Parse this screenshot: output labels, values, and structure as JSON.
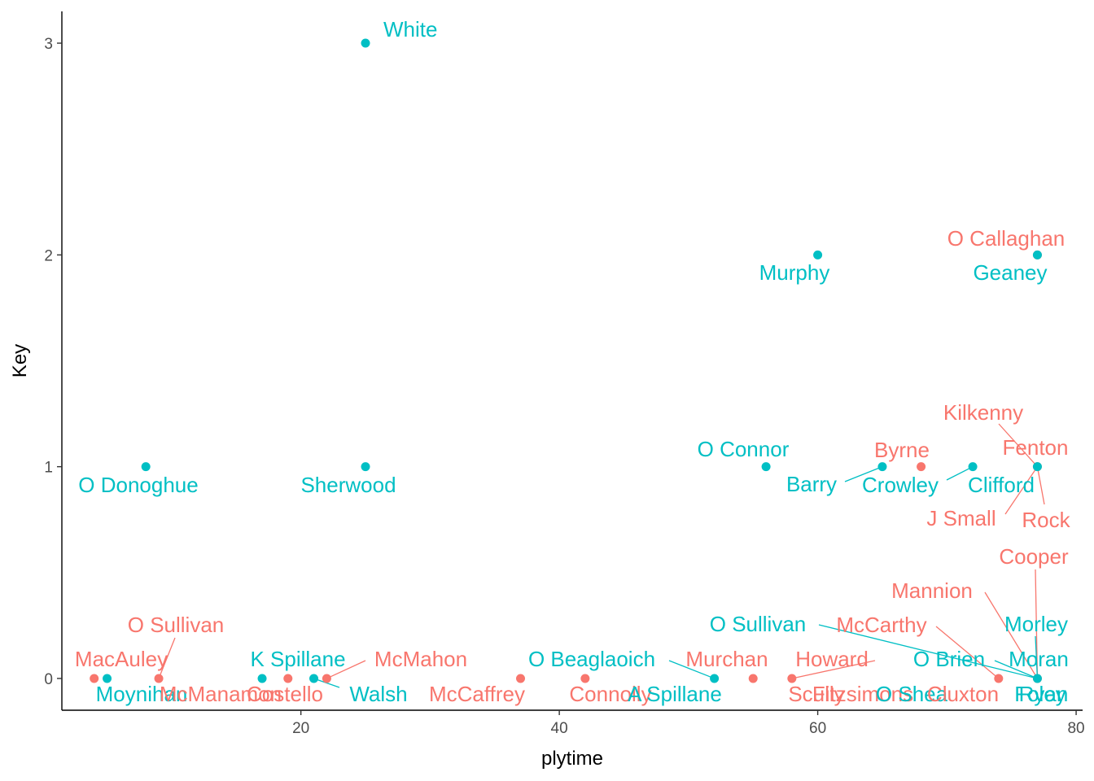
{
  "chart_data": {
    "type": "scatter",
    "title": "",
    "xlabel": "plytime",
    "ylabel": "Key",
    "xlim": [
      1.5,
      80.5
    ],
    "ylim": [
      -0.15,
      3.15
    ],
    "x_ticks": [
      20,
      40,
      60,
      80
    ],
    "y_ticks": [
      0,
      1,
      2,
      3
    ],
    "grid": false,
    "legend": "none",
    "colors": {
      "red": "#F8766D",
      "teal": "#00BFC4"
    },
    "points": [
      {
        "x": 25,
        "y": 3,
        "label": "White",
        "color": "teal"
      },
      {
        "x": 60,
        "y": 2,
        "label": "Murphy",
        "color": "teal"
      },
      {
        "x": 77,
        "y": 2,
        "label": "O Callaghan",
        "color": "red"
      },
      {
        "x": 77,
        "y": 2,
        "label": "Geaney",
        "color": "teal"
      },
      {
        "x": 8,
        "y": 1,
        "label": "O Donoghue",
        "color": "teal"
      },
      {
        "x": 25,
        "y": 1,
        "label": "Sherwood",
        "color": "teal"
      },
      {
        "x": 56,
        "y": 1,
        "label": "O Connor",
        "color": "teal"
      },
      {
        "x": 65,
        "y": 1,
        "label": "Barry",
        "color": "teal"
      },
      {
        "x": 68,
        "y": 1,
        "label": "Byrne",
        "color": "red"
      },
      {
        "x": 72,
        "y": 1,
        "label": "Crowley",
        "color": "teal"
      },
      {
        "x": 77,
        "y": 1,
        "label": "Kilkenny",
        "color": "red"
      },
      {
        "x": 77,
        "y": 1,
        "label": "Fenton",
        "color": "red"
      },
      {
        "x": 77,
        "y": 1,
        "label": "Clifford",
        "color": "teal"
      },
      {
        "x": 77,
        "y": 1,
        "label": "J Small",
        "color": "red"
      },
      {
        "x": 77,
        "y": 1,
        "label": "Rock",
        "color": "red"
      },
      {
        "x": 4,
        "y": 0,
        "label": "MacAuley",
        "color": "red"
      },
      {
        "x": 5,
        "y": 0,
        "label": "Moynihan",
        "color": "teal"
      },
      {
        "x": 9,
        "y": 0,
        "label": "O Sullivan",
        "color": "red"
      },
      {
        "x": 9,
        "y": 0,
        "label": "McManamon",
        "color": "red"
      },
      {
        "x": 17,
        "y": 0,
        "label": "K Spillane",
        "color": "teal"
      },
      {
        "x": 19,
        "y": 0,
        "label": "Costello",
        "color": "red"
      },
      {
        "x": 21,
        "y": 0,
        "label": "Walsh",
        "color": "teal"
      },
      {
        "x": 22,
        "y": 0,
        "label": "McMahon",
        "color": "red"
      },
      {
        "x": 37,
        "y": 0,
        "label": "McCaffrey",
        "color": "red"
      },
      {
        "x": 42,
        "y": 0,
        "label": "Connolly",
        "color": "red"
      },
      {
        "x": 52,
        "y": 0,
        "label": "O Beaglaoich",
        "color": "teal"
      },
      {
        "x": 52,
        "y": 0,
        "label": "A Spillane",
        "color": "teal"
      },
      {
        "x": 55,
        "y": 0,
        "label": "Murchan",
        "color": "red"
      },
      {
        "x": 58,
        "y": 0,
        "label": "Howard",
        "color": "red"
      },
      {
        "x": 58,
        "y": 0,
        "label": "Scully",
        "color": "red"
      },
      {
        "x": 74,
        "y": 0,
        "label": "McCarthy",
        "color": "red"
      },
      {
        "x": 77,
        "y": 0,
        "label": "Cooper",
        "color": "red"
      },
      {
        "x": 77,
        "y": 0,
        "label": "Mannion",
        "color": "red"
      },
      {
        "x": 77,
        "y": 0,
        "label": "Morley",
        "color": "teal"
      },
      {
        "x": 77,
        "y": 0,
        "label": "O Sullivan",
        "color": "teal"
      },
      {
        "x": 77,
        "y": 0,
        "label": "O Brien",
        "color": "teal"
      },
      {
        "x": 77,
        "y": 0,
        "label": "Moran",
        "color": "teal"
      },
      {
        "x": 77,
        "y": 0,
        "label": "Fitzsimons",
        "color": "red"
      },
      {
        "x": 77,
        "y": 0,
        "label": "O Shea",
        "color": "teal"
      },
      {
        "x": 77,
        "y": 0,
        "label": "Cluxton",
        "color": "red"
      },
      {
        "x": 77,
        "y": 0,
        "label": "Foley",
        "color": "teal"
      },
      {
        "x": 77,
        "y": 0,
        "label": "Ryan",
        "color": "teal"
      }
    ]
  }
}
